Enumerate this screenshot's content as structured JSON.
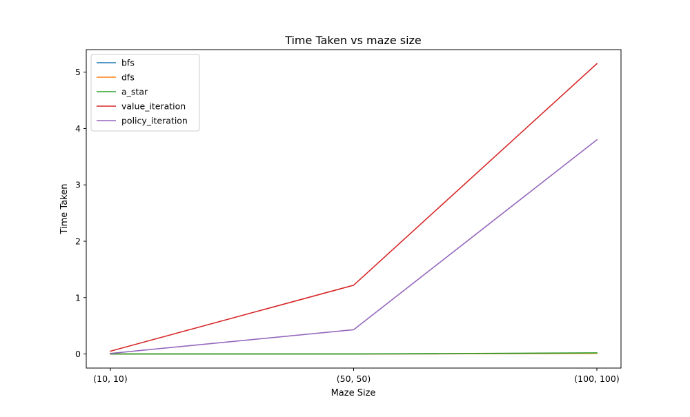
{
  "chart_data": {
    "type": "line",
    "title": "Time Taken vs maze size",
    "xlabel": "Maze Size",
    "ylabel": "Time Taken",
    "categories": [
      "(10, 10)",
      "(50, 50)",
      "(100, 100)"
    ],
    "ylim": [
      -0.25,
      5.4
    ],
    "yticks": [
      0,
      1,
      2,
      3,
      4,
      5
    ],
    "grid": false,
    "legend_position": "top-left",
    "series": [
      {
        "name": "bfs",
        "color": "#1f77b4",
        "values": [
          0.0,
          0.0,
          0.01
        ]
      },
      {
        "name": "dfs",
        "color": "#ff7f0e",
        "values": [
          0.0,
          0.0,
          0.01
        ]
      },
      {
        "name": "a_star",
        "color": "#2ca02c",
        "values": [
          0.0,
          0.0,
          0.02
        ]
      },
      {
        "name": "value_iteration",
        "color": "#d62728",
        "values": [
          0.05,
          1.22,
          5.15
        ]
      },
      {
        "name": "policy_iteration",
        "color": "#9467bd",
        "values": [
          0.01,
          0.43,
          3.8
        ]
      }
    ]
  }
}
